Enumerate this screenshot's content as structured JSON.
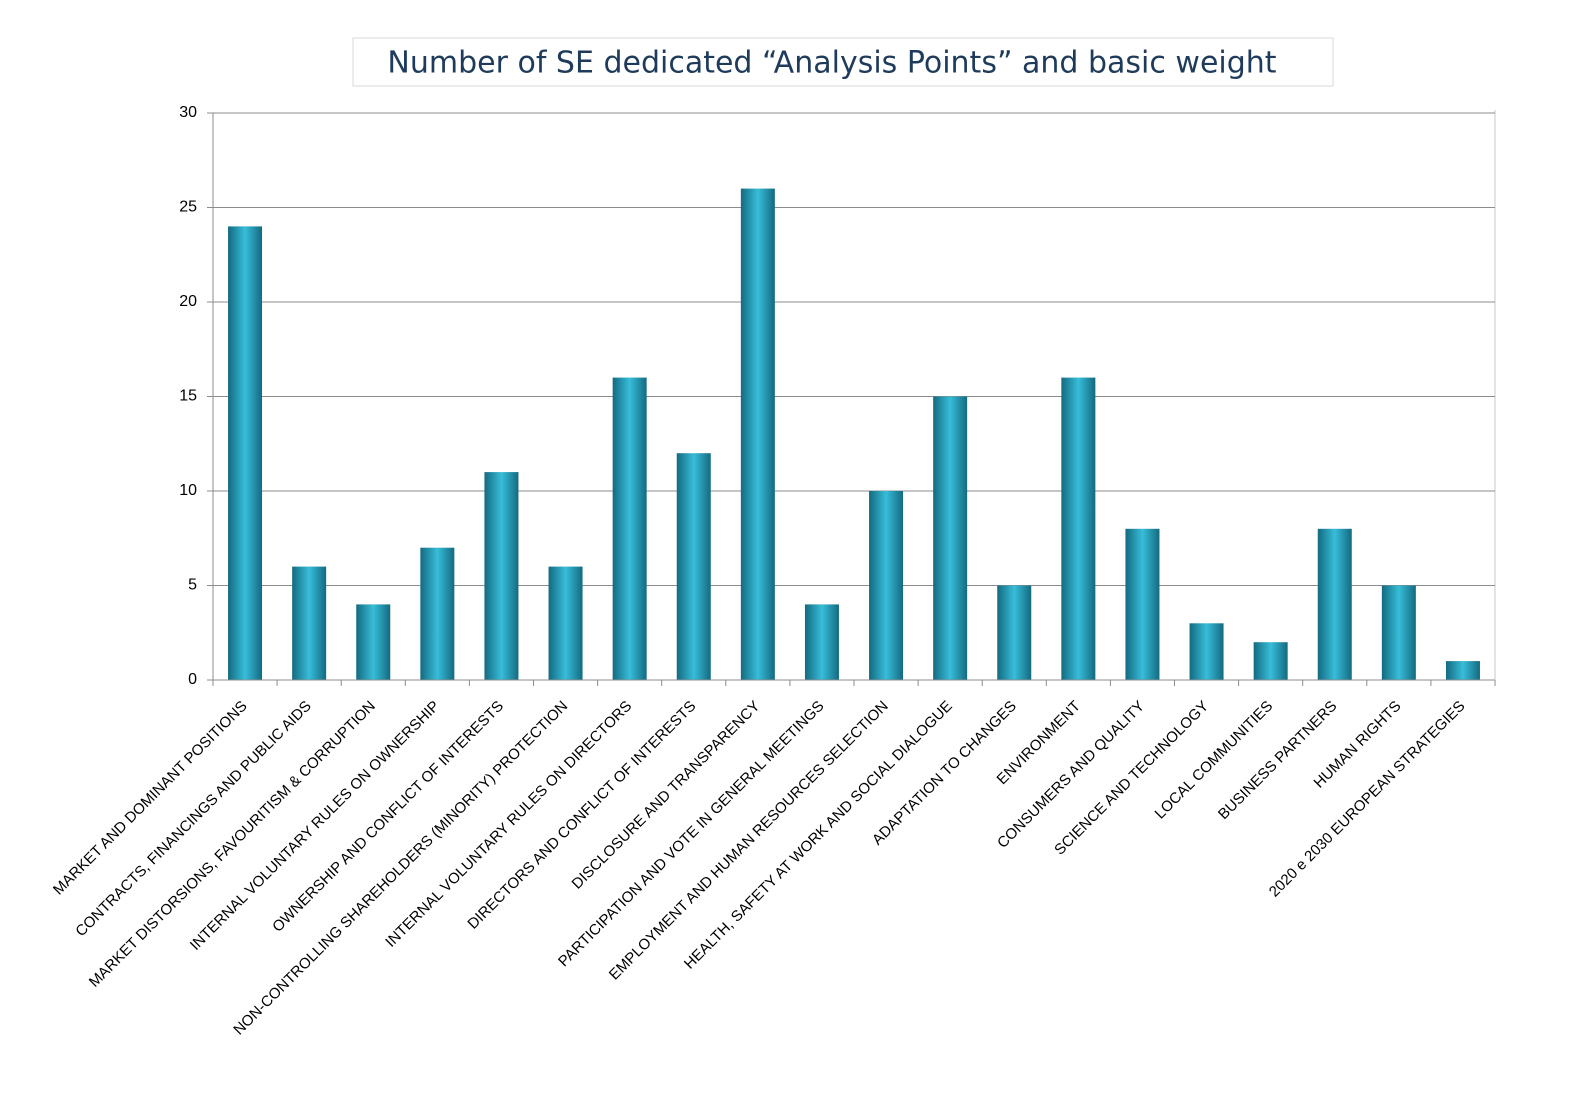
{
  "chart_data": {
    "type": "bar",
    "title": "Number of SE dedicated  “Analysis Points” and basic weight",
    "categories": [
      "MARKET AND DOMINANT POSITIONS",
      "CONTRACTS, FINANCINGS AND PUBLIC AIDS",
      "MARKET DISTORSIONS, FAVOURITISM & CORRUPTION",
      "INTERNAL VOLUNTARY RULES ON OWNERSHIP",
      "OWNERSHIP AND CONFLICT OF INTERESTS",
      "NON-CONTROLLING SHAREHOLDERS (MINORITY) PROTECTION",
      "INTERNAL VOLUNTARY RULES ON DIRECTORS",
      "DIRECTORS AND CONFLICT OF INTERESTS",
      "DISCLOSURE AND TRANSPARENCY",
      "PARTICIPATION AND VOTE IN GENERAL MEETINGS",
      "EMPLOYMENT AND HUMAN RESOURCES SELECTION",
      "HEALTH, SAFETY AT WORK AND SOCIAL DIALOGUE",
      "ADAPTATION TO CHANGES",
      "ENVIRONMENT",
      "CONSUMERS AND QUALITY",
      "SCIENCE AND TECHNOLOGY",
      "LOCAL COMMUNITIES",
      "BUSINESS PARTNERS",
      "HUMAN RIGHTS",
      "2020 e 2030 EUROPEAN STRATEGIES"
    ],
    "values": [
      24,
      6,
      4,
      7,
      11,
      6,
      16,
      12,
      26,
      4,
      10,
      15,
      5,
      16,
      8,
      3,
      2,
      8,
      5,
      1
    ],
    "color": "#38bdd9",
    "ylim": [
      0,
      30
    ],
    "yticks": [
      0,
      5,
      10,
      15,
      20,
      25,
      30
    ],
    "grid": true
  }
}
